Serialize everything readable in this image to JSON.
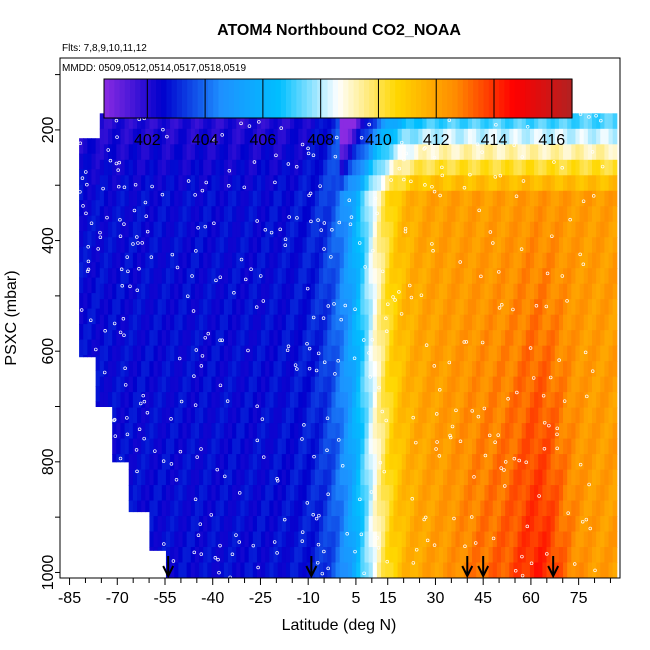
{
  "chart_data": {
    "type": "heatmap",
    "title": "ATOM4 Northbound CO2_NOAA",
    "subtitle_flights": "Flts: 7,8,9,10,11,12",
    "subtitle_dates": "MMDD: 0509,0512,0514,0517,0518,0519",
    "xlabel": "Latitude (deg N)",
    "ylabel": "PSXC (mbar)",
    "xlim": [
      -88,
      88
    ],
    "ylim": [
      1010,
      70
    ],
    "x_ticks": [
      -85,
      -70,
      -55,
      -40,
      -25,
      -10,
      5,
      15,
      30,
      45,
      60,
      75
    ],
    "y_ticks": [
      200,
      400,
      600,
      800,
      1000
    ],
    "colorbar": {
      "min": 400.5,
      "max": 416.7,
      "ticks": [
        402,
        404,
        406,
        408,
        410,
        412,
        414,
        416
      ],
      "colors": [
        "#8a2be2",
        "#0000cd",
        "#1e90ff",
        "#00bfff",
        "#ffffff",
        "#ffd700",
        "#ff8c00",
        "#ff0000",
        "#b22222"
      ]
    },
    "arrows_latitude": [
      -54,
      -9,
      40,
      45,
      67
    ],
    "grid": false,
    "legend": "none"
  }
}
